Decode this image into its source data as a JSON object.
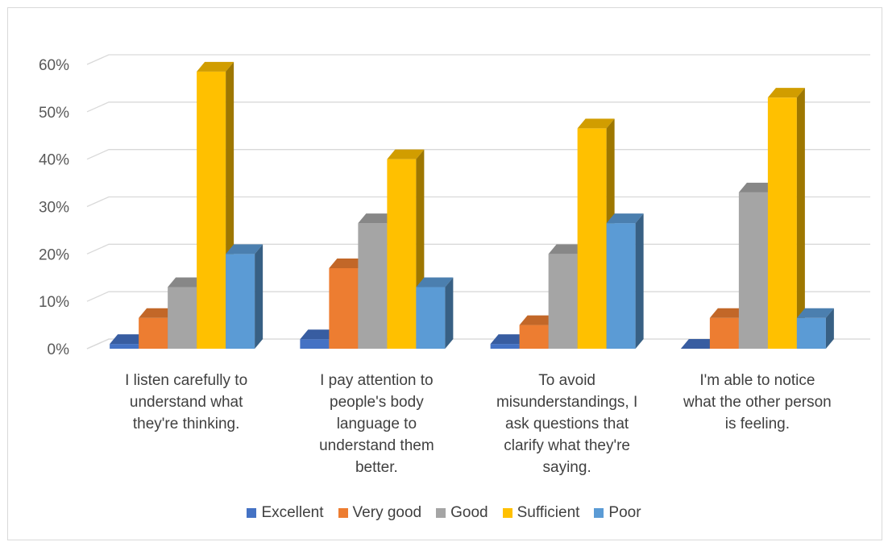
{
  "chart_data": {
    "type": "bar",
    "title": "",
    "xlabel": "",
    "ylabel": "",
    "ylim": [
      0,
      0.6
    ],
    "y_ticks": [
      "0%",
      "10%",
      "20%",
      "30%",
      "40%",
      "50%",
      "60%"
    ],
    "grid": true,
    "legend_position": "bottom",
    "three_d": true,
    "categories": [
      [
        "I listen carefully to",
        "understand what",
        "they're thinking."
      ],
      [
        "I pay attention to",
        "people's body",
        "language to",
        "understand them",
        "better."
      ],
      [
        "To avoid",
        "misunderstandings, I",
        "ask questions that",
        "clarify what they're",
        "saying."
      ],
      [
        "I'm able to notice",
        "what the other person",
        "is feeling."
      ]
    ],
    "series": [
      {
        "name": "Excellent",
        "color": "#4472c4",
        "values": [
          0.01,
          0.02,
          0.01,
          0.0
        ]
      },
      {
        "name": "Very good",
        "color": "#ed7d31",
        "values": [
          0.065,
          0.17,
          0.05,
          0.065
        ]
      },
      {
        "name": "Good",
        "color": "#a5a5a5",
        "values": [
          0.13,
          0.265,
          0.2,
          0.33
        ]
      },
      {
        "name": "Sufficient",
        "color": "#ffc000",
        "values": [
          0.585,
          0.4,
          0.465,
          0.53
        ]
      },
      {
        "name": "Poor",
        "color": "#5b9bd5",
        "values": [
          0.2,
          0.13,
          0.265,
          0.065
        ]
      }
    ]
  }
}
